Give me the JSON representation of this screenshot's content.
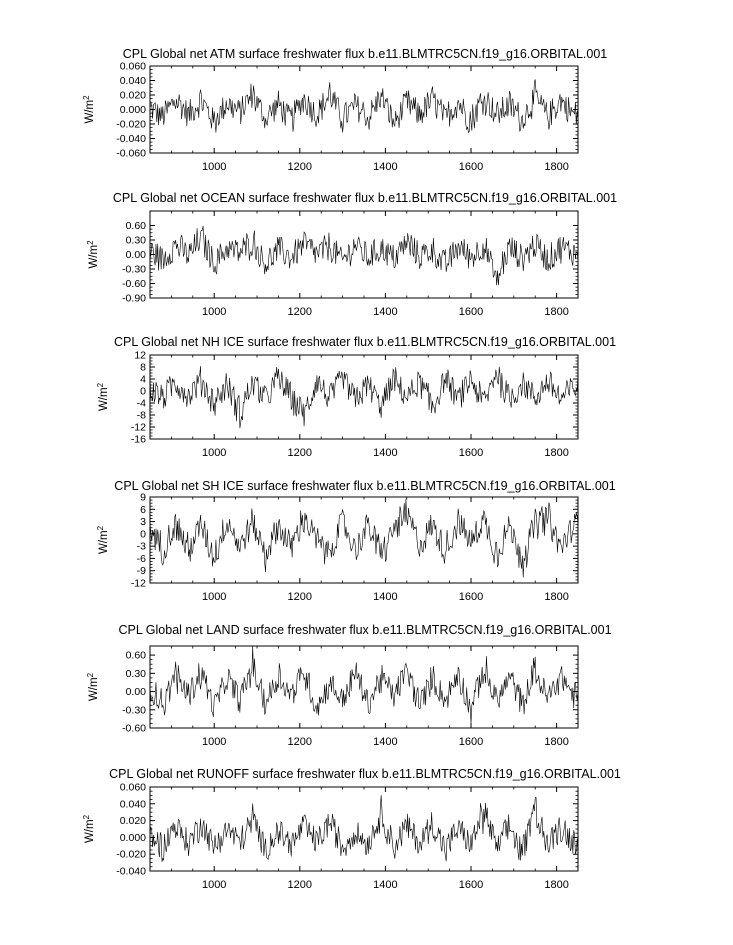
{
  "chart_data": [
    {
      "type": "line",
      "title": "CPL Global net ATM surface freshwater flux b.e11.BLMTRC5CN.f19_g16.ORBITAL.001",
      "ylabel": "W/m",
      "ylabel_sup": "2",
      "xlim": [
        850,
        1850
      ],
      "ylim": [
        -0.06,
        0.06
      ],
      "xticks": [
        1000,
        1200,
        1400,
        1600,
        1800
      ],
      "xtick_labels": [
        "1000",
        "1200",
        "1400",
        "1600",
        "1800"
      ],
      "yticks": [
        -0.06,
        -0.04,
        -0.02,
        0.0,
        0.02,
        0.04,
        0.06
      ],
      "ytick_labels": [
        "-0.060",
        "-0.040",
        "-0.020",
        "0.000",
        "0.020",
        "0.040",
        "0.060"
      ],
      "series": [
        {
          "x": [
            850,
            880,
            910,
            940,
            970,
            1000,
            1030,
            1060,
            1090,
            1120,
            1150,
            1180,
            1210,
            1240,
            1270,
            1300,
            1330,
            1360,
            1390,
            1420,
            1450,
            1480,
            1510,
            1540,
            1570,
            1600,
            1630,
            1660,
            1690,
            1720,
            1750,
            1780,
            1810,
            1840
          ],
          "y": [
            0.004,
            -0.016,
            0.022,
            -0.01,
            0.018,
            -0.024,
            0.012,
            -0.006,
            0.028,
            -0.018,
            0.01,
            -0.022,
            0.024,
            -0.012,
            0.03,
            -0.02,
            0.008,
            -0.016,
            0.026,
            -0.028,
            0.014,
            -0.01,
            0.02,
            -0.018,
            0.016,
            -0.024,
            0.028,
            -0.012,
            0.01,
            -0.02,
            0.024,
            -0.014,
            0.018,
            -0.01
          ]
        }
      ]
    },
    {
      "type": "line",
      "title": "CPL Global net OCEAN surface freshwater flux b.e11.BLMTRC5CN.f19_g16.ORBITAL.001",
      "ylabel": "W/m",
      "ylabel_sup": "2",
      "xlim": [
        850,
        1850
      ],
      "ylim": [
        -0.9,
        0.9
      ],
      "xticks": [
        1000,
        1200,
        1400,
        1600,
        1800
      ],
      "xtick_labels": [
        "1000",
        "1200",
        "1400",
        "1600",
        "1800"
      ],
      "yticks": [
        -0.9,
        -0.6,
        -0.3,
        0.0,
        0.3,
        0.6
      ],
      "ytick_labels": [
        "-0.90",
        "-0.60",
        "-0.30",
        "0.00",
        "0.30",
        "0.60"
      ],
      "series": [
        {
          "x": [
            850,
            880,
            910,
            940,
            970,
            1000,
            1030,
            1060,
            1090,
            1120,
            1150,
            1180,
            1210,
            1240,
            1270,
            1300,
            1330,
            1360,
            1390,
            1420,
            1450,
            1480,
            1510,
            1540,
            1570,
            1600,
            1630,
            1660,
            1690,
            1720,
            1750,
            1780,
            1810,
            1840
          ],
          "y": [
            0.1,
            -0.15,
            0.3,
            -0.05,
            0.5,
            -0.25,
            0.2,
            0.05,
            0.4,
            -0.3,
            0.15,
            -0.1,
            0.35,
            0.0,
            0.25,
            -0.2,
            0.3,
            -0.1,
            0.2,
            -0.15,
            0.35,
            -0.05,
            0.15,
            -0.35,
            0.25,
            -0.1,
            0.3,
            -0.7,
            0.2,
            -0.1,
            0.3,
            -0.15,
            0.2,
            0.05
          ]
        }
      ]
    },
    {
      "type": "line",
      "title": "CPL Global net NH ICE surface freshwater flux b.e11.BLMTRC5CN.f19_g16.ORBITAL.001",
      "ylabel": "W/m",
      "ylabel_sup": "2",
      "xlim": [
        850,
        1850
      ],
      "ylim": [
        -16,
        12
      ],
      "xticks": [
        1000,
        1200,
        1400,
        1600,
        1800
      ],
      "xtick_labels": [
        "1000",
        "1200",
        "1400",
        "1600",
        "1800"
      ],
      "yticks": [
        -16,
        -12,
        -8,
        -4,
        0,
        4,
        8,
        12
      ],
      "ytick_labels": [
        "-16",
        "-12",
        "-8",
        "-4",
        "0",
        "4",
        "8",
        "12"
      ],
      "series": [
        {
          "x": [
            850,
            880,
            910,
            940,
            970,
            1000,
            1030,
            1060,
            1090,
            1120,
            1150,
            1180,
            1210,
            1240,
            1270,
            1300,
            1330,
            1360,
            1390,
            1420,
            1450,
            1480,
            1510,
            1540,
            1570,
            1600,
            1630,
            1660,
            1690,
            1720,
            1750,
            1780,
            1810,
            1840
          ],
          "y": [
            1,
            -3,
            4,
            -2,
            5,
            -6,
            3,
            -10,
            4,
            -4,
            6,
            -3,
            -11,
            5,
            -4,
            6,
            -5,
            3,
            -7,
            5,
            -3,
            4,
            -8,
            6,
            -4,
            5,
            -6,
            9,
            -5,
            4,
            -3,
            5,
            -4,
            2
          ]
        }
      ]
    },
    {
      "type": "line",
      "title": "CPL Global net SH ICE surface freshwater flux b.e11.BLMTRC5CN.f19_g16.ORBITAL.001",
      "ylabel": "W/m",
      "ylabel_sup": "2",
      "xlim": [
        850,
        1850
      ],
      "ylim": [
        -12,
        9
      ],
      "xticks": [
        1000,
        1200,
        1400,
        1600,
        1800
      ],
      "xtick_labels": [
        "1000",
        "1200",
        "1400",
        "1600",
        "1800"
      ],
      "yticks": [
        -12,
        -9,
        -6,
        -3,
        0,
        3,
        6,
        9
      ],
      "ytick_labels": [
        "-12",
        "-9",
        "-6",
        "-3",
        "0",
        "3",
        "6",
        "9"
      ],
      "series": [
        {
          "x": [
            850,
            880,
            910,
            940,
            970,
            1000,
            1030,
            1060,
            1090,
            1120,
            1150,
            1180,
            1210,
            1240,
            1270,
            1300,
            1330,
            1360,
            1390,
            1420,
            1450,
            1480,
            1510,
            1540,
            1570,
            1600,
            1630,
            1660,
            1690,
            1720,
            1750,
            1780,
            1810,
            1840
          ],
          "y": [
            2,
            -5,
            4,
            -6,
            3,
            -8,
            5,
            -4,
            4,
            -7,
            3,
            -5,
            6,
            -3,
            -6,
            4,
            -5,
            3,
            -8,
            2,
            7,
            -4,
            3,
            -6,
            4,
            -3,
            5,
            -7,
            3,
            -10,
            4,
            6,
            -5,
            3
          ]
        }
      ]
    },
    {
      "type": "line",
      "title": "CPL Global net LAND surface freshwater flux b.e11.BLMTRC5CN.f19_g16.ORBITAL.001",
      "ylabel": "W/m",
      "ylabel_sup": "2",
      "xlim": [
        850,
        1850
      ],
      "ylim": [
        -0.6,
        0.75
      ],
      "xticks": [
        1000,
        1200,
        1400,
        1600,
        1800
      ],
      "xtick_labels": [
        "1000",
        "1200",
        "1400",
        "1600",
        "1800"
      ],
      "yticks": [
        -0.6,
        -0.3,
        0.0,
        0.3,
        0.6
      ],
      "ytick_labels": [
        "-0.60",
        "-0.30",
        "0.00",
        "0.30",
        "0.60"
      ],
      "series": [
        {
          "x": [
            850,
            880,
            910,
            940,
            970,
            1000,
            1030,
            1060,
            1090,
            1120,
            1150,
            1180,
            1210,
            1240,
            1270,
            1300,
            1330,
            1360,
            1390,
            1420,
            1450,
            1480,
            1510,
            1540,
            1570,
            1600,
            1630,
            1660,
            1690,
            1720,
            1750,
            1780,
            1810,
            1840
          ],
          "y": [
            0.1,
            -0.3,
            0.4,
            -0.1,
            0.5,
            -0.4,
            0.3,
            -0.2,
            0.6,
            -0.3,
            0.4,
            -0.1,
            0.5,
            -0.4,
            0.2,
            -0.2,
            0.45,
            -0.3,
            0.35,
            -0.1,
            0.5,
            -0.35,
            0.3,
            -0.2,
            0.4,
            -0.4,
            0.55,
            -0.25,
            0.35,
            -0.3,
            0.5,
            -0.2,
            0.4,
            -0.1
          ]
        }
      ]
    },
    {
      "type": "line",
      "title": "CPL Global net RUNOFF surface freshwater flux b.e11.BLMTRC5CN.f19_g16.ORBITAL.001",
      "ylabel": "W/m",
      "ylabel_sup": "2",
      "xlim": [
        850,
        1850
      ],
      "ylim": [
        -0.04,
        0.06
      ],
      "xticks": [
        1000,
        1200,
        1400,
        1600,
        1800
      ],
      "xtick_labels": [
        "1000",
        "1200",
        "1400",
        "1600",
        "1800"
      ],
      "yticks": [
        -0.04,
        -0.02,
        0.0,
        0.02,
        0.04,
        0.06
      ],
      "ytick_labels": [
        "-0.040",
        "-0.020",
        "0.000",
        "0.020",
        "0.040",
        "0.060"
      ],
      "series": [
        {
          "x": [
            850,
            880,
            910,
            940,
            970,
            1000,
            1030,
            1060,
            1090,
            1120,
            1150,
            1180,
            1210,
            1240,
            1270,
            1300,
            1330,
            1360,
            1390,
            1420,
            1450,
            1480,
            1510,
            1540,
            1570,
            1600,
            1630,
            1660,
            1690,
            1720,
            1750,
            1780,
            1810,
            1840
          ],
          "y": [
            0.002,
            -0.015,
            0.02,
            -0.01,
            0.025,
            -0.018,
            0.015,
            -0.008,
            0.03,
            -0.02,
            0.012,
            -0.015,
            0.022,
            -0.01,
            0.028,
            -0.018,
            0.01,
            -0.012,
            0.042,
            -0.015,
            0.02,
            -0.01,
            0.025,
            -0.02,
            0.015,
            -0.012,
            0.045,
            -0.018,
            0.02,
            -0.03,
            0.055,
            -0.015,
            0.02,
            -0.01
          ]
        }
      ]
    }
  ]
}
